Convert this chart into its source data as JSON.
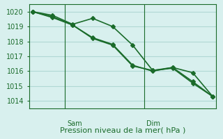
{
  "title": "",
  "xlabel": "Pression niveau de la mer( hPa )",
  "ylim": [
    1013.5,
    1020.5
  ],
  "yticks": [
    1014,
    1015,
    1016,
    1017,
    1018,
    1019,
    1020
  ],
  "background_color": "#d8f0ee",
  "grid_color": "#b0d8d4",
  "line_color": "#1a6b2a",
  "line_width": 1.2,
  "marker": "D",
  "marker_size": 3,
  "day_lines": [
    0.18,
    0.62
  ],
  "day_labels": [
    "Sam",
    "Dim"
  ],
  "series": [
    [
      1020.0,
      1019.75,
      1019.15,
      1019.55,
      1019.0,
      1017.75,
      1016.05,
      1016.25,
      1015.9,
      1014.3
    ],
    [
      1020.0,
      1019.65,
      1019.1,
      1018.25,
      1017.8,
      1016.4,
      1016.0,
      1016.25,
      1015.3,
      1014.3
    ],
    [
      1020.0,
      1019.6,
      1019.1,
      1018.2,
      1017.75,
      1016.35,
      1016.05,
      1016.2,
      1015.2,
      1014.3
    ]
  ],
  "n_points": 10,
  "xlabel_fontsize": 8,
  "tick_fontsize": 7,
  "day_label_fontsize": 7
}
